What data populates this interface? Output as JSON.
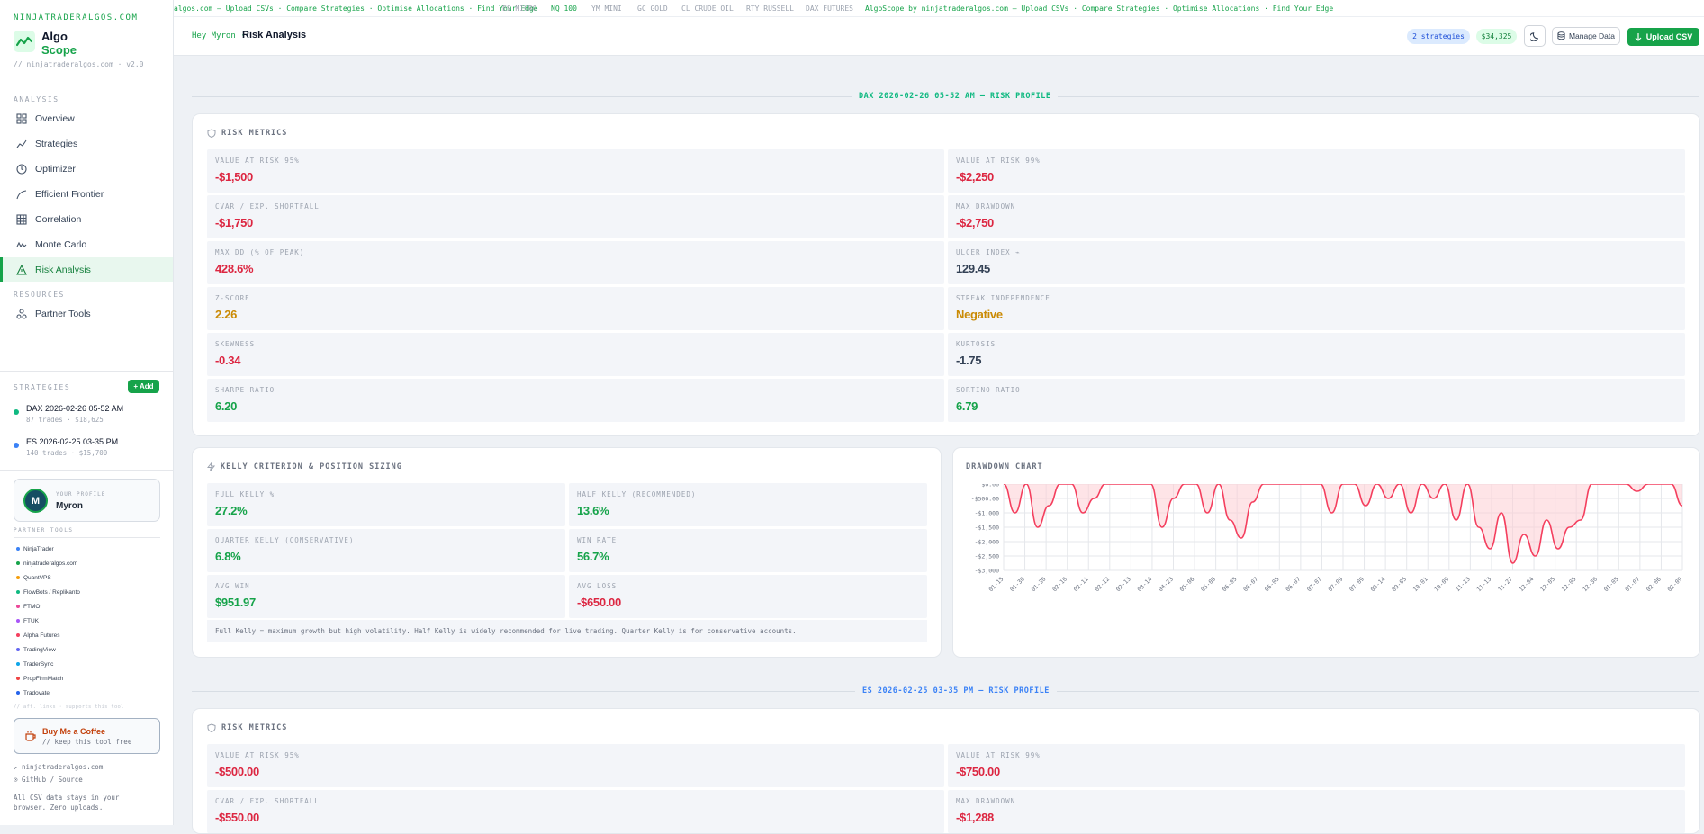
{
  "brand": {
    "site": "NINJATRADERALGOS.COM",
    "name_line1": "Algo",
    "name_line2": "Scope",
    "version": "// ninjatraderalgos.com · v2.0"
  },
  "sidebar": {
    "analysis_label": "ANALYSIS",
    "nav": [
      {
        "label": "Overview",
        "icon": "grid-icon"
      },
      {
        "label": "Strategies",
        "icon": "trend-icon"
      },
      {
        "label": "Optimizer",
        "icon": "clock-icon"
      },
      {
        "label": "Efficient Frontier",
        "icon": "curve-icon"
      },
      {
        "label": "Correlation",
        "icon": "table-icon"
      },
      {
        "label": "Monte Carlo",
        "icon": "wave-icon"
      },
      {
        "label": "Risk Analysis",
        "icon": "warning-icon",
        "active": true
      }
    ],
    "resources_label": "RESOURCES",
    "resources": [
      {
        "label": "Partner Tools",
        "icon": "nodes-icon"
      }
    ],
    "strategies_label": "STRATEGIES",
    "add_label": "+ Add",
    "strategies": [
      {
        "name": "DAX 2026-02-26 05-52 AM",
        "meta": "87 trades · $18,625",
        "color": "#10b981"
      },
      {
        "name": "ES 2026-02-25 03-35 PM",
        "meta": "140 trades · $15,700",
        "color": "#3b82f6"
      }
    ],
    "profile": {
      "label": "YOUR PROFILE",
      "name": "Myron",
      "initial": "M"
    },
    "partner_label": "PARTNER TOOLS",
    "partners": [
      {
        "name": "NinjaTrader",
        "color": "#3b82f6"
      },
      {
        "name": "ninjatraderalgos.com",
        "color": "#16a34a"
      },
      {
        "name": "QuantVPS",
        "color": "#f59e0b"
      },
      {
        "name": "FlowBots / Replikanto",
        "color": "#10b981"
      },
      {
        "name": "FTMO",
        "color": "#ec4899"
      },
      {
        "name": "FTUK",
        "color": "#a855f7"
      },
      {
        "name": "Alpha Futures",
        "color": "#f43f5e"
      },
      {
        "name": "TradingView",
        "color": "#6366f1"
      },
      {
        "name": "TraderSync",
        "color": "#0ea5e9"
      },
      {
        "name": "PropFirmMatch",
        "color": "#ef4444"
      },
      {
        "name": "Tradovate",
        "color": "#2563eb"
      }
    ],
    "partner_note": "// aff. links · supports this tool",
    "coffee": {
      "title": "Buy Me a Coffee",
      "sub": "// keep this tool free"
    },
    "footer": {
      "link1": "↗ ninjatraderalgos.com",
      "link2": "GitHub / Source",
      "note1": "All CSV data stays in your",
      "note2": "browser. Zero uploads."
    }
  },
  "ticker": [
    {
      "text": "algos.com — Upload CSVs · Compare Strategies · Optimise Allocations · Find Your Edge",
      "color": "#16a34a"
    },
    {
      "text": "ES MICRO",
      "color": "#9ca3af"
    },
    {
      "text": "NQ 100",
      "color": "#16a34a"
    },
    {
      "text": "YM MINI",
      "color": "#9ca3af"
    },
    {
      "text": "GC GOLD",
      "color": "#9ca3af"
    },
    {
      "text": "CL CRUDE OIL",
      "color": "#9ca3af"
    },
    {
      "text": "RTY RUSSELL",
      "color": "#9ca3af"
    },
    {
      "text": "DAX FUTURES",
      "color": "#9ca3af"
    },
    {
      "text": "AlgoScope by ninjatraderalgos.com — Upload CSVs · Compare Strategies · Optimise Allocations · Find Your Edge",
      "color": "#16a34a"
    }
  ],
  "header": {
    "greeting": "Hey Myron ·",
    "title": "Risk Analysis",
    "strategies_pill": "2 strategies",
    "total_pill": "$34,325",
    "manage_label": "Manage Data",
    "upload_label": "Upload CSV"
  },
  "sections": [
    {
      "heading": "DAX 2026-02-26 05-52 AM — RISK PROFILE",
      "color": "#10b981",
      "risk_title": "RISK METRICS",
      "metrics": [
        {
          "label": "VALUE AT RISK 95%",
          "value": "-$1,500",
          "tone": "red"
        },
        {
          "label": "VALUE AT RISK 99%",
          "value": "-$2,250",
          "tone": "red"
        },
        {
          "label": "CVAR / EXP. SHORTFALL",
          "value": "-$1,750",
          "tone": "red"
        },
        {
          "label": "MAX DRAWDOWN",
          "value": "-$2,750",
          "tone": "red"
        },
        {
          "label": "MAX DD (% OF PEAK)",
          "value": "428.6%",
          "tone": "red"
        },
        {
          "label": "ULCER INDEX ⌁",
          "value": "129.45",
          "tone": "slt"
        },
        {
          "label": "Z-SCORE",
          "value": "2.26",
          "tone": "amb"
        },
        {
          "label": "STREAK INDEPENDENCE",
          "value": "Negative",
          "tone": "amb"
        },
        {
          "label": "SKEWNESS",
          "value": "-0.34",
          "tone": "red"
        },
        {
          "label": "KURTOSIS",
          "value": "-1.75",
          "tone": "slt"
        },
        {
          "label": "SHARPE RATIO",
          "value": "6.20",
          "tone": "grn"
        },
        {
          "label": "SORTINO RATIO",
          "value": "6.79",
          "tone": "grn"
        }
      ],
      "kelly_title": "KELLY CRITERION & POSITION SIZING",
      "kelly": [
        {
          "label": "FULL KELLY %",
          "value": "27.2%",
          "tone": "grn"
        },
        {
          "label": "HALF KELLY (RECOMMENDED)",
          "value": "13.6%",
          "tone": "grn"
        },
        {
          "label": "QUARTER KELLY (CONSERVATIVE)",
          "value": "6.8%",
          "tone": "grn"
        },
        {
          "label": "WIN RATE",
          "value": "56.7%",
          "tone": "grn"
        },
        {
          "label": "AVG WIN",
          "value": "$951.97",
          "tone": "grn"
        },
        {
          "label": "AVG LOSS",
          "value": "-$650.00",
          "tone": "red"
        }
      ],
      "kelly_note": "Full Kelly = maximum growth but high volatility. Half Kelly is widely recommended for live trading. Quarter Kelly is for conservative accounts.",
      "drawdown_title": "DRAWDOWN CHART"
    },
    {
      "heading": "ES 2026-02-25 03-35 PM — RISK PROFILE",
      "color": "#3b82f6",
      "risk_title": "RISK METRICS",
      "metrics": [
        {
          "label": "VALUE AT RISK 95%",
          "value": "-$500.00",
          "tone": "red"
        },
        {
          "label": "VALUE AT RISK 99%",
          "value": "-$750.00",
          "tone": "red"
        },
        {
          "label": "CVAR / EXP. SHORTFALL",
          "value": "-$550.00",
          "tone": "red"
        },
        {
          "label": "MAX DRAWDOWN",
          "value": "-$1,288",
          "tone": "red"
        }
      ]
    }
  ],
  "chart_data": {
    "type": "area",
    "title": "DRAWDOWN CHART",
    "ylim": [
      -3000,
      0
    ],
    "y_ticks": [
      "$0.00",
      "-$500.00",
      "-$1,000",
      "-$1,500",
      "-$2,000",
      "-$2,500",
      "-$3,000"
    ],
    "x_ticks": [
      "01-15",
      "01-30",
      "01-30",
      "02-10",
      "02-11",
      "02-12",
      "02-13",
      "03-14",
      "04-23",
      "05-06",
      "05-09",
      "06-05",
      "06-07",
      "06-05",
      "06-07",
      "07-07",
      "07-09",
      "07-09",
      "08-14",
      "09-05",
      "10-01",
      "10-09",
      "11-13",
      "11-13",
      "11-27",
      "12-04",
      "12-05",
      "12-05",
      "12-30",
      "01-05",
      "01-07",
      "02-06",
      "02-09"
    ],
    "values": [
      0,
      -1000,
      0,
      -1500,
      -750,
      0,
      0,
      -1000,
      -500,
      0,
      0,
      0,
      0,
      0,
      -1500,
      -500,
      0,
      0,
      -1000,
      0,
      -1250,
      -1875,
      -625,
      0,
      0,
      0,
      0,
      0,
      0,
      -1000,
      0,
      0,
      -750,
      0,
      -500,
      0,
      -1000,
      0,
      -500,
      0,
      -1250,
      0,
      -1500,
      -2250,
      -1000,
      -2750,
      -1750,
      -2500,
      -1250,
      -2250,
      -1500,
      -1250,
      0,
      0,
      0,
      0,
      -250,
      0,
      0,
      0,
      -750
    ],
    "line_color": "#f43f5e",
    "grid": true
  }
}
